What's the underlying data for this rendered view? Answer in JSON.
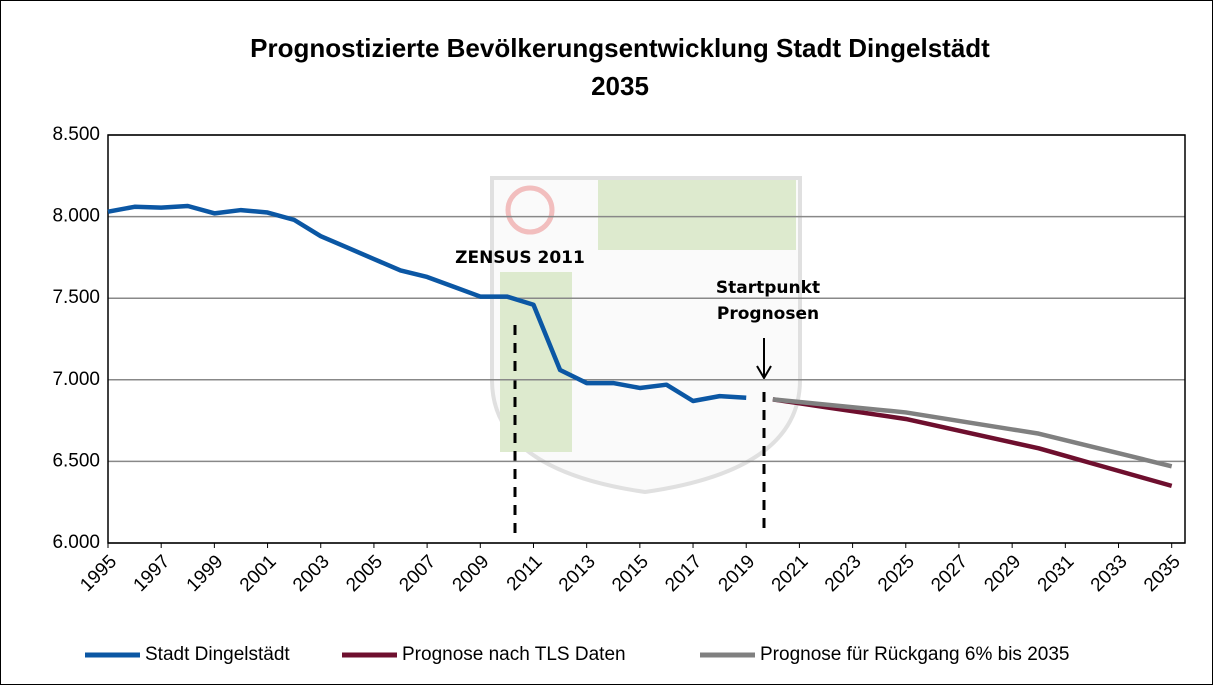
{
  "chart_data": {
    "type": "line",
    "title": "Prognostizierte Bevölkerungsentwicklung Stadt Dingelstädt",
    "subtitle": "2035",
    "annotations": [
      "ZENSUS 2011",
      "Startpunkt",
      "Prognosen"
    ],
    "x": [
      1995,
      1996,
      1997,
      1998,
      1999,
      2000,
      2001,
      2002,
      2003,
      2004,
      2005,
      2006,
      2007,
      2008,
      2009,
      2010,
      2011,
      2012,
      2013,
      2014,
      2015,
      2016,
      2017,
      2018,
      2019,
      2020,
      2021,
      2022,
      2023,
      2024,
      2025,
      2026,
      2027,
      2028,
      2029,
      2030,
      2031,
      2032,
      2033,
      2034,
      2035
    ],
    "series": [
      {
        "name": "Stadt Dingelstädt",
        "color": "#0b57a4",
        "values": [
          8030,
          8060,
          8055,
          8065,
          8020,
          8040,
          8025,
          7980,
          7880,
          7810,
          7740,
          7670,
          7630,
          7570,
          7510,
          7510,
          7460,
          7060,
          6980,
          6980,
          6950,
          6970,
          6870,
          6900,
          6890,
          null,
          null,
          null,
          null,
          null,
          null,
          null,
          null,
          null,
          null,
          null,
          null,
          null,
          null,
          null,
          null
        ]
      },
      {
        "name": "Prognose nach TLS Daten",
        "color": "#6e0f2e",
        "values": [
          null,
          null,
          null,
          null,
          null,
          null,
          null,
          null,
          null,
          null,
          null,
          null,
          null,
          null,
          null,
          null,
          null,
          null,
          null,
          null,
          null,
          null,
          null,
          null,
          null,
          6880,
          6856,
          6832,
          6808,
          6784,
          6760,
          6724,
          6688,
          6652,
          6616,
          6580,
          6534,
          6488,
          6442,
          6396,
          6350
        ]
      },
      {
        "name": "Prognose für Rückgang 6% bis 2035",
        "color": "#808080",
        "values": [
          null,
          null,
          null,
          null,
          null,
          null,
          null,
          null,
          null,
          null,
          null,
          null,
          null,
          null,
          null,
          null,
          null,
          null,
          null,
          null,
          null,
          null,
          null,
          null,
          null,
          6880,
          6864,
          6848,
          6832,
          6816,
          6800,
          6774,
          6748,
          6722,
          6696,
          6670,
          6630,
          6590,
          6550,
          6510,
          6470
        ]
      }
    ],
    "xlim": [
      1995,
      2035.5
    ],
    "xticks": [
      1995,
      1997,
      1999,
      2001,
      2003,
      2005,
      2007,
      2009,
      2011,
      2013,
      2015,
      2017,
      2019,
      2021,
      2023,
      2025,
      2027,
      2029,
      2031,
      2033,
      2035
    ],
    "ylim": [
      6000,
      8500
    ],
    "yticks": [
      {
        "value": 6000,
        "label": "6.000"
      },
      {
        "value": 6500,
        "label": "6.500"
      },
      {
        "value": 7000,
        "label": "7.000"
      },
      {
        "value": 7500,
        "label": "7.500"
      },
      {
        "value": 8000,
        "label": "8.000"
      },
      {
        "value": 8500,
        "label": "8.500"
      }
    ],
    "grid": true,
    "legend": "bottom"
  }
}
